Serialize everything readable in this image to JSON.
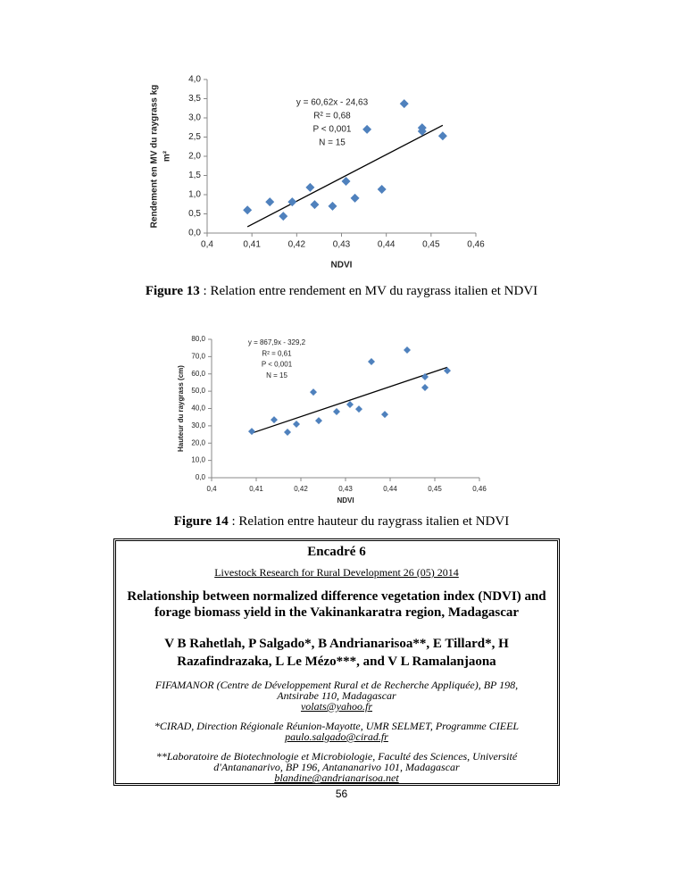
{
  "chart_data": [
    {
      "type": "scatter",
      "ylabel": [
        "Rendement en MV du raygrass kg",
        "m²"
      ],
      "xlabel": "NDVI",
      "color": "#4f81bd",
      "x": [
        0.409,
        0.414,
        0.417,
        0.419,
        0.423,
        0.424,
        0.428,
        0.431,
        0.433,
        0.4357,
        0.439,
        0.444,
        0.448,
        0.448,
        0.4526
      ],
      "values": [
        0.6,
        0.81,
        0.44,
        0.81,
        1.19,
        0.74,
        0.7,
        1.35,
        0.91,
        2.7,
        1.14,
        3.37,
        2.74,
        2.65,
        2.53
      ],
      "xlim": [
        0.4,
        0.46
      ],
      "ylim": [
        0,
        4
      ],
      "xticks": [
        {
          "value": 0.4,
          "label": "0,4"
        },
        {
          "value": 0.41,
          "label": "0,41"
        },
        {
          "value": 0.42,
          "label": "0,42"
        },
        {
          "value": 0.43,
          "label": "0,43"
        },
        {
          "value": 0.44,
          "label": "0,44"
        },
        {
          "value": 0.45,
          "label": "0,45"
        },
        {
          "value": 0.46,
          "label": "0,46"
        }
      ],
      "yticks": [
        {
          "value": 0,
          "label": "0,0"
        },
        {
          "value": 0.5,
          "label": "0,5"
        },
        {
          "value": 1,
          "label": "1,0"
        },
        {
          "value": 1.5,
          "label": "1,5"
        },
        {
          "value": 2,
          "label": "2,0"
        },
        {
          "value": 2.5,
          "label": "2,5"
        },
        {
          "value": 3,
          "label": "3,0"
        },
        {
          "value": 3.5,
          "label": "3,5"
        },
        {
          "value": 4,
          "label": "4,0"
        }
      ],
      "trendline": {
        "slope": 60.62,
        "intercept": -24.63
      },
      "annotations": [
        "y = 60,62x - 24,63",
        "R² = 0,68",
        "P < 0,001",
        "N = 15"
      ]
    },
    {
      "type": "scatter",
      "ylabel": [
        "Hauteur du raygrass (cm)"
      ],
      "xlabel": "NDVI",
      "color": "#4f81bd",
      "x": [
        0.409,
        0.414,
        0.417,
        0.419,
        0.4228,
        0.424,
        0.428,
        0.431,
        0.433,
        0.4358,
        0.4388,
        0.4438,
        0.4478,
        0.4478,
        0.4528
      ],
      "values": [
        26.8,
        33.5,
        26.3,
        31.0,
        49.5,
        33.0,
        38.2,
        42.3,
        39.7,
        67.1,
        36.6,
        73.8,
        58.3,
        52.1,
        61.9
      ],
      "xlim": [
        0.4,
        0.46
      ],
      "ylim": [
        0,
        80
      ],
      "xticks": [
        {
          "value": 0.4,
          "label": "0,4"
        },
        {
          "value": 0.41,
          "label": "0,41"
        },
        {
          "value": 0.42,
          "label": "0,42"
        },
        {
          "value": 0.43,
          "label": "0,43"
        },
        {
          "value": 0.44,
          "label": "0,44"
        },
        {
          "value": 0.45,
          "label": "0,45"
        },
        {
          "value": 0.46,
          "label": "0,46"
        }
      ],
      "yticks": [
        {
          "value": 0,
          "label": "0,0"
        },
        {
          "value": 10,
          "label": "10,0"
        },
        {
          "value": 20,
          "label": "20,0"
        },
        {
          "value": 30,
          "label": "30,0"
        },
        {
          "value": 40,
          "label": "40,0"
        },
        {
          "value": 50,
          "label": "50,0"
        },
        {
          "value": 60,
          "label": "60,0"
        },
        {
          "value": 70,
          "label": "70,0"
        },
        {
          "value": 80,
          "label": "80,0"
        }
      ],
      "trendline": {
        "slope": 867.9,
        "intercept": -329.2
      },
      "annotations": [
        "y = 867,9x - 329,2",
        "R² = 0,61",
        "P < 0,001",
        "N = 15"
      ]
    }
  ],
  "captions": [
    {
      "label": "Figure 13",
      "text": " : Relation entre rendement en MV du raygrass italien et NDVI"
    },
    {
      "label": "Figure 14",
      "text": " : Relation entre hauteur du raygrass italien et NDVI"
    }
  ],
  "box": {
    "title": "Encadré 6",
    "source": "Livestock Research for Rural Development 26 (05) 2014",
    "article_title": "Relationship between normalized difference vegetation index (NDVI) and forage biomass yield in the Vakinankaratra region, Madagascar",
    "authors": "V B Rahetlah, P Salgado*, B Andrianarisoa**, E Tillard*, H Razafindrazaka, L Le Mézo***, and V L Ramalanjaona",
    "affiliations": [
      {
        "text": "FIFAMANOR (Centre de Développement Rural et de Recherche Appliquée), BP 198, Antsirabe 110, Madagascar",
        "email": "volats@yahoo.fr"
      },
      {
        "text": "*CIRAD, Direction Régionale Réunion-Mayotte, UMR SELMET, Programme CIEEL",
        "email": "paulo.salgado@cirad.fr"
      },
      {
        "text": "**Laboratoire de Biotechnologie et Microbiologie, Faculté des Sciences, Université d'Antananarivo, BP 196, Antananarivo 101, Madagascar",
        "email": "blandine@andrianarisoa.net"
      }
    ]
  },
  "page_number": "56"
}
